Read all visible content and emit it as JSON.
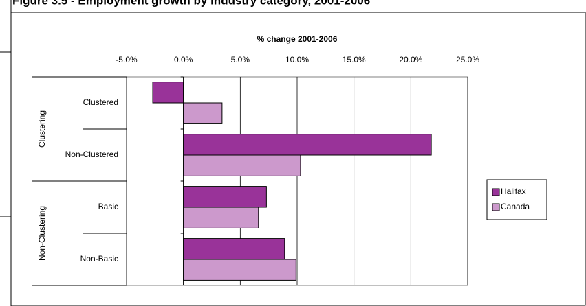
{
  "chart_data": {
    "type": "hbar",
    "title": "Figure 3.5 - Employment growth by industry category, 2001-2006",
    "x_label": "% change 2001-2006",
    "group_labels": [
      "Clustering",
      "Non-Clustering"
    ],
    "categories": [
      "Clustered",
      "Non-Clustered",
      "Basic",
      "Non-Basic"
    ],
    "series": [
      {
        "name": "Halifax",
        "color": "#993399",
        "values": [
          -2.7,
          21.8,
          7.3,
          8.9
        ]
      },
      {
        "name": "Canada",
        "color": "#cc99cc",
        "values": [
          3.4,
          10.3,
          6.6,
          9.9
        ]
      }
    ],
    "xlim": [
      -5,
      25
    ],
    "xticks": [
      {
        "value": -5,
        "label": "-5.0%"
      },
      {
        "value": 0,
        "label": "0.0%"
      },
      {
        "value": 5,
        "label": "5.0%"
      },
      {
        "value": 10,
        "label": "10.0%"
      },
      {
        "value": 15,
        "label": "15.0%"
      },
      {
        "value": 20,
        "label": "20.0%"
      },
      {
        "value": 25,
        "label": "25.0%"
      }
    ],
    "grid": true,
    "legend": "right"
  }
}
